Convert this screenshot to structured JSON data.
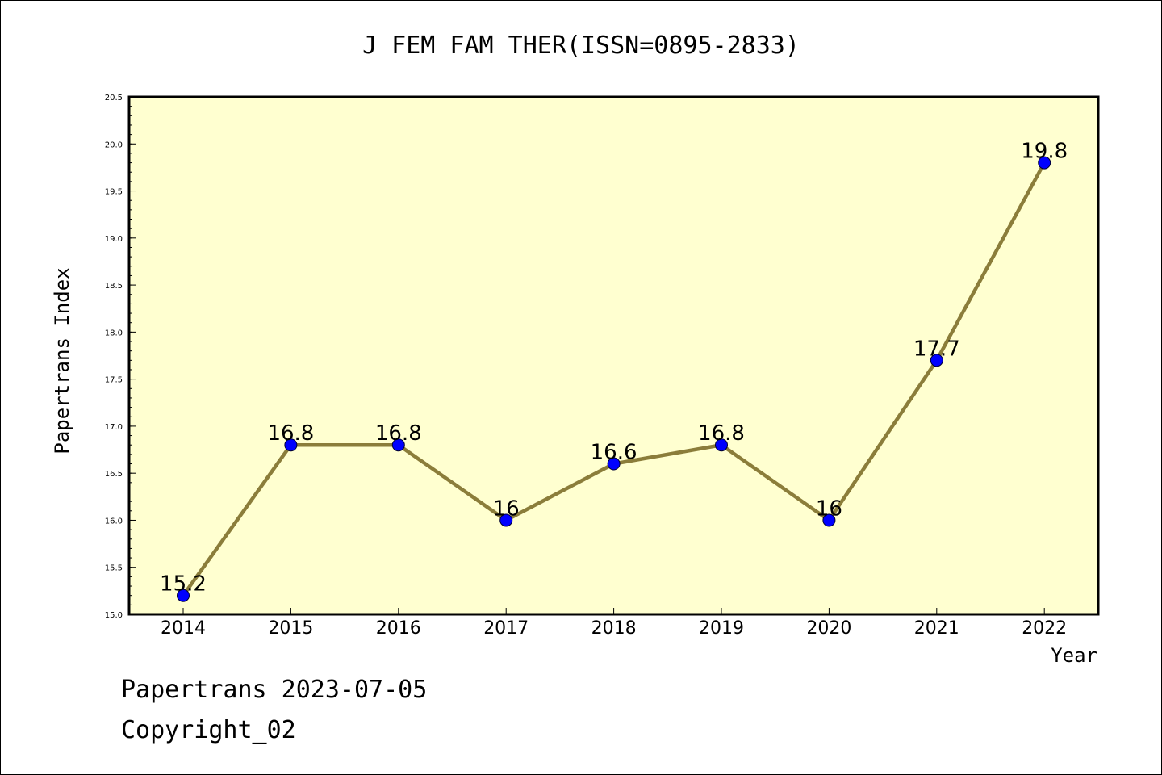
{
  "chart_data": {
    "type": "line",
    "title": "J FEM FAM THER(ISSN=0895-2833)",
    "xlabel": "Year",
    "ylabel": "Papertrans Index",
    "categories": [
      "2014",
      "2015",
      "2016",
      "2017",
      "2018",
      "2019",
      "2020",
      "2021",
      "2022"
    ],
    "values": [
      15.2,
      16.8,
      16.8,
      16,
      16.6,
      16.8,
      16,
      17.7,
      19.8
    ],
    "data_labels": [
      "15.2",
      "16.8",
      "16.8",
      "16",
      "16.6",
      "16.8",
      "16",
      "17.7",
      "19.8"
    ],
    "ylim": [
      15.0,
      20.5
    ],
    "yticks": [
      "15.0",
      "15.5",
      "16.0",
      "16.5",
      "17.0",
      "17.5",
      "18.0",
      "18.5",
      "19.0",
      "19.5",
      "20.0",
      "20.5"
    ],
    "grid": false,
    "colors": {
      "plot_background": "#ffffd0",
      "line": "#8b7d3a",
      "marker": "#0000ff"
    }
  },
  "footer": {
    "line1": "Papertrans 2023-07-05",
    "line2": "Copyright_02"
  }
}
